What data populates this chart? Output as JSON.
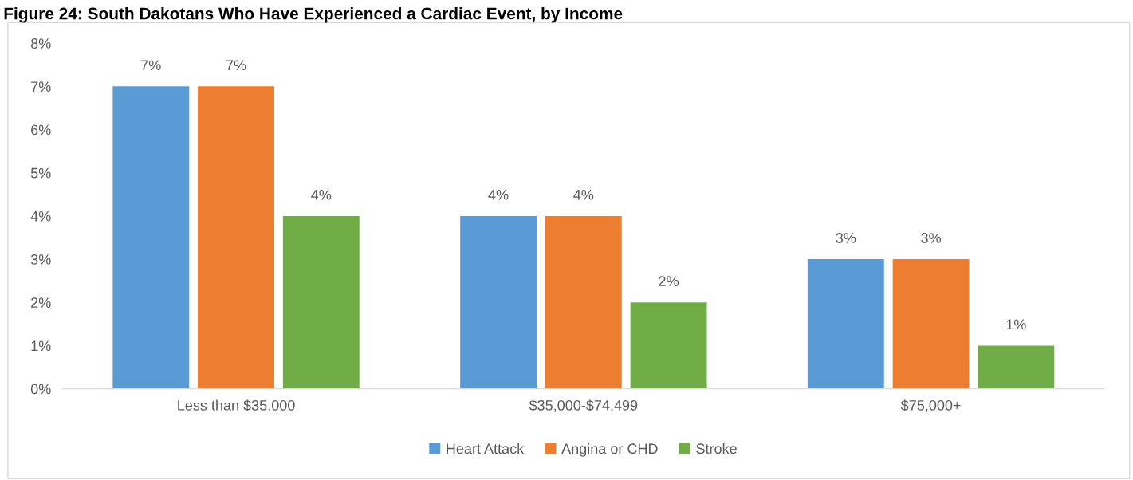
{
  "chart_data": {
    "type": "bar",
    "title": "Figure 24: South Dakotans Who Have Experienced a Cardiac Event, by Income",
    "categories": [
      "Less than $35,000",
      "$35,000-$74,499",
      "$75,000+"
    ],
    "series": [
      {
        "name": "Heart Attack",
        "color": "#5b9bd5",
        "values": [
          7,
          4,
          3
        ],
        "value_labels": [
          "7%",
          "4%",
          "3%"
        ]
      },
      {
        "name": "Angina or CHD",
        "color": "#ed7d31",
        "values": [
          7,
          4,
          3
        ],
        "value_labels": [
          "7%",
          "4%",
          "3%"
        ]
      },
      {
        "name": "Stroke",
        "color": "#70ad47",
        "values": [
          4,
          2,
          1
        ],
        "value_labels": [
          "4%",
          "2%",
          "1%"
        ]
      }
    ],
    "ylim": [
      0,
      8
    ],
    "yticks": [
      {
        "value": 0,
        "label": "0%"
      },
      {
        "value": 1,
        "label": "1%"
      },
      {
        "value": 2,
        "label": "2%"
      },
      {
        "value": 3,
        "label": "3%"
      },
      {
        "value": 4,
        "label": "4%"
      },
      {
        "value": 5,
        "label": "5%"
      },
      {
        "value": 6,
        "label": "6%"
      },
      {
        "value": 7,
        "label": "7%"
      },
      {
        "value": 8,
        "label": "8%"
      }
    ],
    "grid": false,
    "legend": "bottom"
  }
}
